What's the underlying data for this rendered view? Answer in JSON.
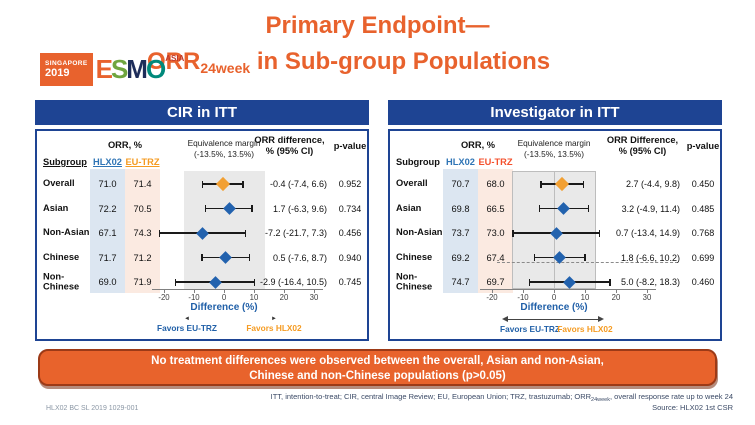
{
  "slide": {
    "title_line1": "Primary Endpoint—",
    "title_orr": "ORR",
    "title_orr_sub": "24week",
    "title_line2_rest": " in Sub-group Populations",
    "accent_color": "#E8622D"
  },
  "logo": {
    "badge_top": "SINGAPORE",
    "badge_year": "2019",
    "badge_bg": "#E8622D",
    "letters": [
      {
        "ch": "E",
        "color": "#E8622D"
      },
      {
        "ch": "S",
        "color": "#6FA53F"
      },
      {
        "ch": "M",
        "color": "#1E2D5A"
      },
      {
        "ch": "O",
        "color": "#00897B"
      }
    ],
    "region": "ASIA",
    "region_color": "#C0392B"
  },
  "panels": [
    {
      "header": "CIR in ITT",
      "col_subgroup": "Subgroup",
      "col_orr_group": "ORR, %",
      "col_hlx02": "HLX02",
      "col_eutrz": "EU-TRZ",
      "hlx02_color": "#2E74B5",
      "eutrz_color": "#F59B22",
      "margin_line1": "Equivalence margin",
      "margin_line2": "(-13.5%, 13.5%)",
      "col_diff_line1": "ORR difference,",
      "col_diff_line2": "% (95% CI)",
      "col_p": "p-value",
      "favors_left": "Favors EU-TRZ",
      "favors_right": "Favors HLX02"
    },
    {
      "header": "Investigator in ITT",
      "col_subgroup": "Subgroup",
      "col_orr_group": "ORR, %",
      "col_hlx02": "HLX02",
      "col_eutrz": "EU-TRZ",
      "hlx02_color": "#2E74B5",
      "eutrz_color": "#F4502C",
      "margin_line1": "Equivalence margin",
      "margin_line2": "(-13.5%, 13.5%)",
      "col_diff_line1": "ORR Difference,",
      "col_diff_line2": "% (95% CI)",
      "col_p": "p-value",
      "favors_left": "Favors EU-TRZ",
      "favors_right": "Favors HLX02"
    }
  ],
  "chart_data": [
    {
      "type": "forest",
      "title": "CIR in ITT",
      "categories": [
        "Overall",
        "Asian",
        "Non-Asian",
        "Chinese",
        "Non-Chinese"
      ],
      "series": [
        {
          "name": "ORR % HLX02",
          "values": [
            71.0,
            72.2,
            67.1,
            71.7,
            69.0
          ]
        },
        {
          "name": "ORR % EU-TRZ",
          "values": [
            71.4,
            70.5,
            74.3,
            71.2,
            71.9
          ]
        }
      ],
      "estimates": [
        -0.4,
        1.7,
        -7.2,
        0.5,
        -2.9
      ],
      "ci_low": [
        -7.4,
        -6.3,
        -21.7,
        -7.6,
        -16.4
      ],
      "ci_high": [
        6.6,
        9.6,
        7.3,
        8.7,
        10.5
      ],
      "p_values": [
        "0.952",
        "0.734",
        "0.456",
        "0.940",
        "0.745"
      ],
      "equivalence_margin": [
        -13.5,
        13.5
      ],
      "xlabel": "Difference (%)",
      "xticks": [
        -20,
        -10,
        0,
        10,
        20,
        30
      ],
      "xlim": [
        -24,
        33
      ],
      "highlight_row": 0,
      "highlight_color": "#F2A033",
      "marker_color": "#2262AE"
    },
    {
      "type": "forest",
      "title": "Investigator in ITT",
      "categories": [
        "Overall",
        "Asian",
        "Non-Asian",
        "Chinese",
        "Non-Chinese"
      ],
      "series": [
        {
          "name": "ORR % HLX02",
          "values": [
            70.7,
            69.8,
            73.7,
            69.2,
            74.7
          ]
        },
        {
          "name": "ORR % EU-TRZ",
          "values": [
            68.0,
            66.5,
            73.0,
            67.4,
            69.7
          ]
        }
      ],
      "estimates": [
        2.7,
        3.2,
        0.7,
        1.8,
        5.0
      ],
      "ci_low": [
        -4.4,
        -4.9,
        -13.4,
        -6.6,
        -8.2
      ],
      "ci_high": [
        9.8,
        11.4,
        14.9,
        10.2,
        18.3
      ],
      "p_values": [
        "0.450",
        "0.485",
        "0.768",
        "0.699",
        "0.460"
      ],
      "equivalence_margin": [
        -13.5,
        13.5
      ],
      "xlabel": "Difference (%)",
      "xticks": [
        -20,
        -10,
        0,
        10,
        20,
        30
      ],
      "xlim": [
        -24,
        33
      ],
      "highlight_row": 0,
      "highlight_color": "#F2A033",
      "marker_color": "#2262AE"
    }
  ],
  "banner": {
    "line1": "No treatment differences were observed between the overall, Asian and non-Asian,",
    "line2": "Chinese and non-Chinese populations (p>0.05)",
    "bg_color": "#E8632C"
  },
  "footnote": {
    "line1_pre": "ITT, intention-to-treat; CIR, central Image Review; EU, European Union; TRZ, trastuzumab; ORR",
    "line1_sub": "24week",
    "line1_post": ", overall response rate up to week 24",
    "line2": "Source: HLX02 1st CSR"
  },
  "slide_code": "HLX02 BC SL 2019 1029-001",
  "colors": {
    "panel_header_bg": "#1E4493",
    "panel_border": "#1E4493",
    "hlx02_tint": "#DCE6F1",
    "eutrz_tint": "#FBEAE1",
    "band_gray": "#E9E9E9",
    "difference_label": "#2160A8",
    "favors_eutrz": "#2160A8",
    "favors_hlx02": "#F59B22",
    "footnote_text": "#3B4A66"
  }
}
